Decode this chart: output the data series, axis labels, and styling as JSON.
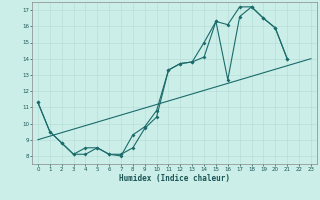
{
  "xlabel": "Humidex (Indice chaleur)",
  "ylabel": "",
  "bg_color": "#cceee8",
  "line_color": "#1a6b6b",
  "grid_color": "#b8ddd8",
  "xlim": [
    -0.5,
    23.5
  ],
  "ylim": [
    7.5,
    17.5
  ],
  "xticks": [
    0,
    1,
    2,
    3,
    4,
    5,
    6,
    7,
    8,
    9,
    10,
    11,
    12,
    13,
    14,
    15,
    16,
    17,
    18,
    19,
    20,
    21,
    22,
    23
  ],
  "yticks": [
    8,
    9,
    10,
    11,
    12,
    13,
    14,
    15,
    16,
    17
  ],
  "line1_x": [
    0,
    1,
    2,
    3,
    4,
    5,
    6,
    7,
    8,
    9,
    10,
    11,
    12,
    13,
    14,
    15,
    16,
    17,
    18,
    19,
    20,
    21
  ],
  "line1_y": [
    11.3,
    9.5,
    8.8,
    8.1,
    8.1,
    8.5,
    8.1,
    8.1,
    8.5,
    9.7,
    10.4,
    13.3,
    13.7,
    13.8,
    14.1,
    16.3,
    16.1,
    17.2,
    17.2,
    16.5,
    15.9,
    14.0
  ],
  "line2_x": [
    0,
    1,
    2,
    3,
    4,
    5,
    6,
    7,
    8,
    9,
    10,
    11,
    12,
    13,
    14,
    15,
    16,
    17,
    18,
    19,
    20,
    21
  ],
  "line2_y": [
    11.3,
    9.5,
    8.8,
    8.1,
    8.5,
    8.5,
    8.1,
    8.0,
    9.3,
    9.8,
    10.8,
    13.3,
    13.7,
    13.8,
    15.0,
    16.3,
    12.7,
    16.6,
    17.2,
    16.5,
    15.9,
    14.0
  ],
  "line3_x": [
    0,
    23
  ],
  "line3_y": [
    9.0,
    14.0
  ]
}
